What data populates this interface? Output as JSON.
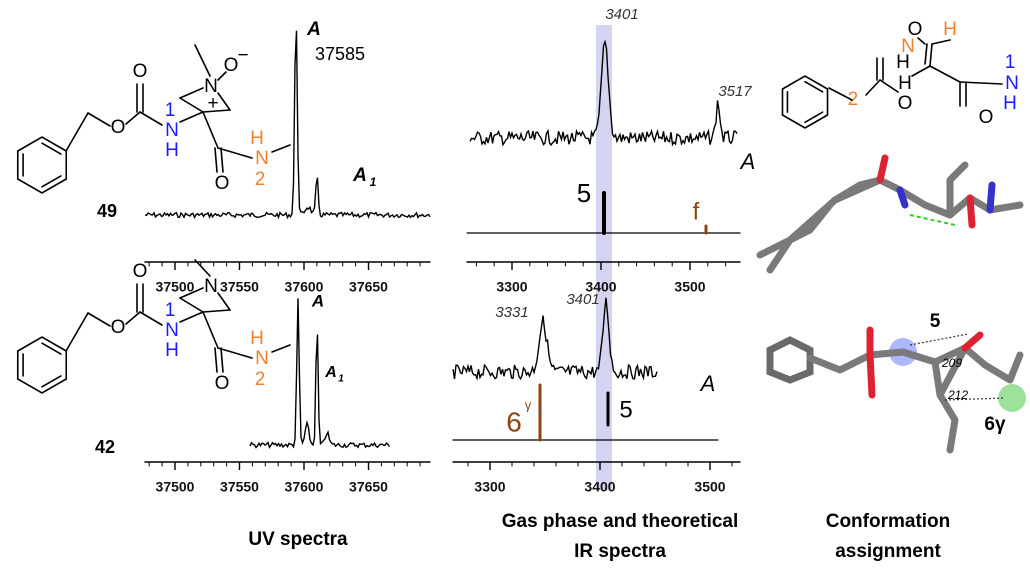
{
  "uv_spectra": {
    "caption": "UV spectra",
    "panels": [
      {
        "compound": "49",
        "peak_label": "A",
        "peak_value": 37585,
        "minor_label": "A",
        "minor_subscript": "1",
        "xticks": [
          37500,
          37550,
          37600,
          37650
        ]
      },
      {
        "compound": "42",
        "peak_label": "A",
        "minor_label": "A",
        "minor_subscript": "1",
        "xticks": [
          37500,
          37550,
          37600,
          37650
        ]
      }
    ]
  },
  "ir_spectra": {
    "caption_lines": [
      "Gas phase and theoretical",
      "IR spectra"
    ],
    "panels": [
      {
        "peaks": [
          3401,
          3517
        ],
        "conformer": "A",
        "bands": [
          {
            "text": "5",
            "color": "#000000"
          },
          {
            "text": "f",
            "color": "#8b4513"
          }
        ],
        "xticks": [
          3300,
          3400,
          3500
        ]
      },
      {
        "peaks": [
          3331,
          3401
        ],
        "conformer": "A",
        "bands": [
          {
            "text": "6",
            "sup": "γ",
            "color": "#8b4513"
          },
          {
            "text": "5",
            "color": "#000000"
          }
        ],
        "xticks": [
          3300,
          3400,
          3500
        ]
      }
    ]
  },
  "conformation": {
    "caption_lines": [
      "Conformation",
      "assignment"
    ],
    "labels": [
      "5",
      "209",
      "212",
      "6γ"
    ]
  },
  "molecules": [
    {
      "atoms": [
        {
          "text": "O",
          "color": "#000000"
        },
        {
          "text": "O",
          "color": "#000000"
        },
        {
          "text": "1",
          "color": "#1a1aff"
        },
        {
          "text": "N",
          "color": "#1a1aff"
        },
        {
          "text": "H",
          "color": "#1a1aff"
        },
        {
          "text": "N",
          "color": "#000000"
        },
        {
          "text": "+",
          "color": "#000000"
        },
        {
          "text": "O",
          "color": "#000000"
        },
        {
          "text": "−",
          "color": "#000000"
        },
        {
          "text": "O",
          "color": "#000000"
        },
        {
          "text": "H",
          "color": "#f08030"
        },
        {
          "text": "N",
          "color": "#f08030"
        },
        {
          "text": "2",
          "color": "#f08030"
        }
      ]
    },
    {
      "atoms": [
        {
          "text": "O",
          "color": "#000000"
        },
        {
          "text": "O",
          "color": "#000000"
        },
        {
          "text": "1",
          "color": "#1a1aff"
        },
        {
          "text": "N",
          "color": "#1a1aff"
        },
        {
          "text": "H",
          "color": "#1a1aff"
        },
        {
          "text": "N",
          "color": "#000000"
        },
        {
          "text": "O",
          "color": "#000000"
        },
        {
          "text": "H",
          "color": "#f08030"
        },
        {
          "text": "N",
          "color": "#f08030"
        },
        {
          "text": "2",
          "color": "#f08030"
        }
      ]
    },
    {
      "atoms": [
        {
          "text": "H",
          "color": "#000000"
        },
        {
          "text": "H",
          "color": "#000000"
        },
        {
          "text": "O",
          "color": "#000000"
        },
        {
          "text": "O",
          "color": "#000000"
        },
        {
          "text": "1",
          "color": "#1a1aff"
        },
        {
          "text": "N",
          "color": "#1a1aff"
        },
        {
          "text": "H",
          "color": "#1a1aff"
        },
        {
          "text": "O",
          "color": "#000000"
        },
        {
          "text": "H",
          "color": "#f08030"
        },
        {
          "text": "N",
          "color": "#f08030"
        },
        {
          "text": "2",
          "color": "#f08030"
        }
      ]
    }
  ]
}
